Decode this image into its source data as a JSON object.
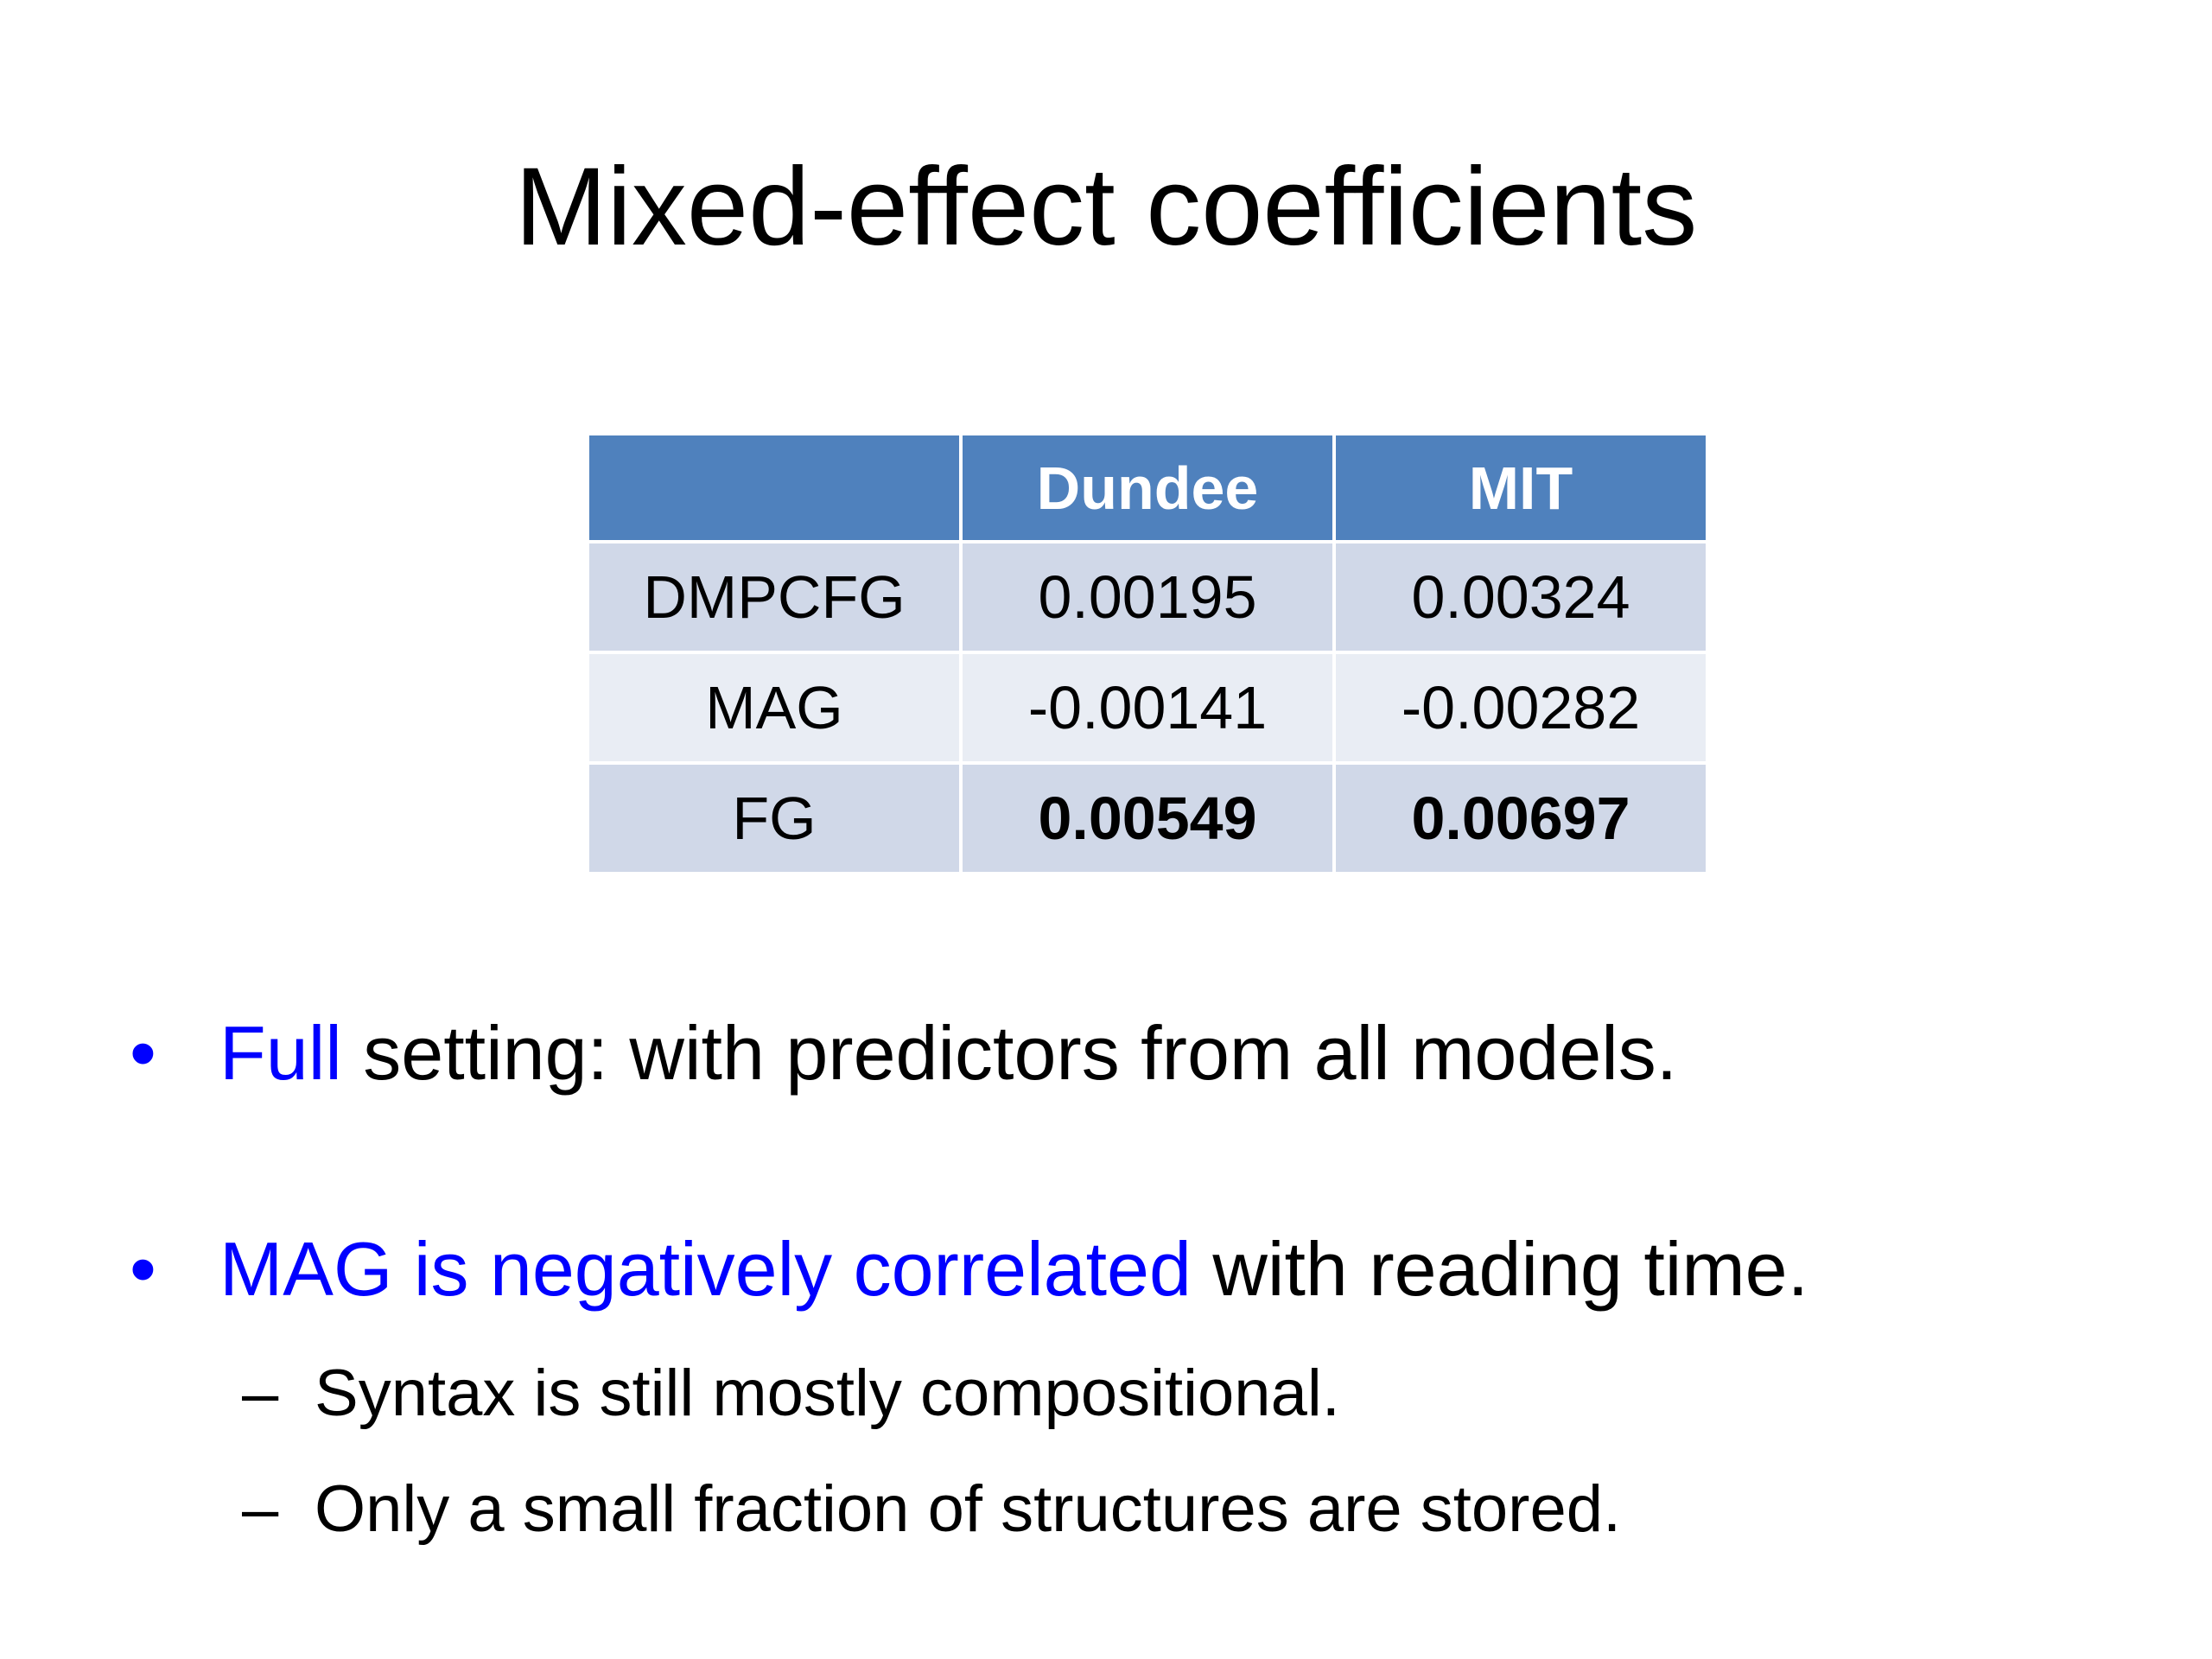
{
  "header": {
    "title": "Mixed-effect coefficients"
  },
  "table": {
    "columns": [
      "Dundee",
      "MIT"
    ],
    "rows": [
      {
        "label": "DMPCFG",
        "values": [
          0.00195,
          0.00324
        ],
        "bold": false
      },
      {
        "label": "MAG",
        "values": [
          -0.00141,
          -0.00282
        ],
        "bold": false
      },
      {
        "label": "FG",
        "values": [
          0.00549,
          0.00697
        ],
        "bold": true
      }
    ]
  },
  "bullets": [
    {
      "highlight": "Full",
      "text": " setting: with predictors from all models.",
      "sub": []
    },
    {
      "highlight": "MAG is negatively correlated",
      "text": " with reading time.",
      "sub": [
        "Syntax is still mostly compositional.",
        "Only a small fraction of structures are stored."
      ]
    }
  ]
}
